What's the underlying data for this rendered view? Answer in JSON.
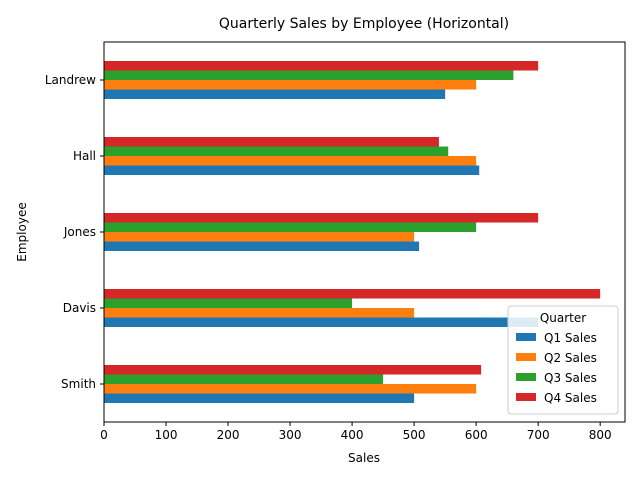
{
  "chart_data": {
    "type": "bar",
    "orientation": "horizontal",
    "title": "Quarterly Sales by Employee (Horizontal)",
    "xlabel": "Sales",
    "ylabel": "Employee",
    "xlim": [
      0,
      840
    ],
    "xticks": [
      0,
      100,
      200,
      300,
      400,
      500,
      600,
      700,
      800
    ],
    "categories": [
      "Smith",
      "Davis",
      "Jones",
      "Hall",
      "Landrew"
    ],
    "series": [
      {
        "name": "Q1 Sales",
        "color": "#1f77b4",
        "values": [
          500,
          700,
          508,
          605,
          550
        ]
      },
      {
        "name": "Q2 Sales",
        "color": "#ff7f0e",
        "values": [
          600,
          500,
          500,
          600,
          600
        ]
      },
      {
        "name": "Q3 Sales",
        "color": "#2ca02c",
        "values": [
          450,
          400,
          600,
          555,
          660
        ]
      },
      {
        "name": "Q4 Sales",
        "color": "#d62728",
        "values": [
          608,
          800,
          700,
          540,
          700
        ]
      }
    ],
    "legend": {
      "title": "Quarter",
      "position": "lower-right"
    },
    "grid": false
  }
}
